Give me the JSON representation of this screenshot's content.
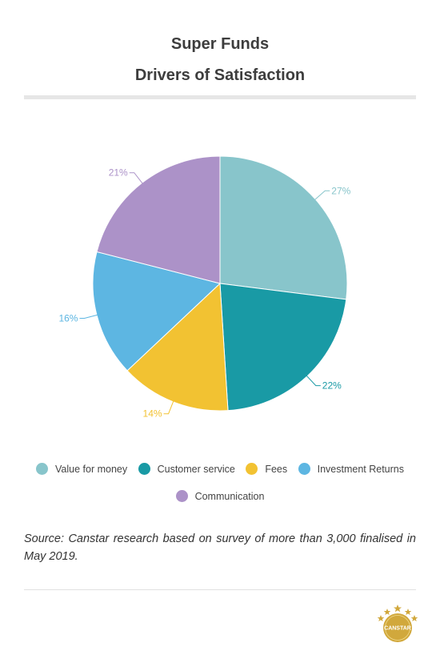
{
  "header": {
    "title_line1": "Super Funds",
    "title_line2": "Drivers of Satisfaction"
  },
  "chart_data": {
    "type": "pie",
    "title": "Super Funds Drivers of Satisfaction",
    "slices": [
      {
        "name": "Value for money",
        "value": 27,
        "label": "27%",
        "color": "#88c5cb"
      },
      {
        "name": "Customer service",
        "value": 22,
        "label": "22%",
        "color": "#199aa5"
      },
      {
        "name": "Fees",
        "value": 14,
        "label": "14%",
        "color": "#f2c232"
      },
      {
        "name": "Investment Returns",
        "value": 16,
        "label": "16%",
        "color": "#5db6e2"
      },
      {
        "name": "Communication",
        "value": 21,
        "label": "21%",
        "color": "#ac92c8"
      }
    ],
    "legend_placement": "bottom"
  },
  "source_text": "Source: Canstar research based on survey of more than 3,000 finalised in May 2019.",
  "logo": {
    "text": "CANSTAR",
    "icon": "canstar-stars-logo",
    "color": "#d1a83c"
  }
}
